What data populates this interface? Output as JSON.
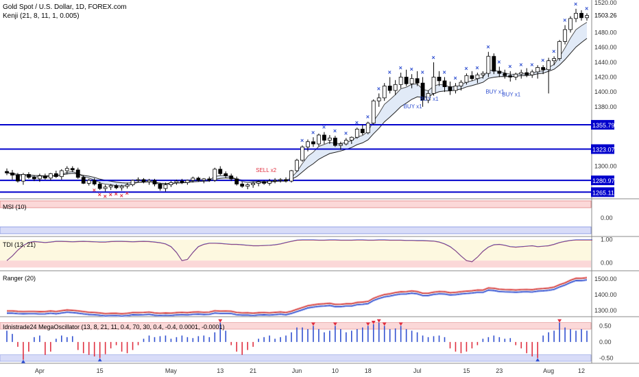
{
  "header": {
    "title": "Gold Spot / U.S. Dollar, 1D, FOREX.com",
    "indicator": "Kenji (21, 8, 11, 1, 0.005)"
  },
  "colors": {
    "up_candle_fill": "#ffffff",
    "down_candle_fill": "#000000",
    "level_line": "#0000cc",
    "buy_marker": "#3050d0",
    "sell_marker": "#e03040",
    "cloud_fill": "#c8d8f0",
    "band_red": "#f0a0a0",
    "band_blue": "#a0b0f0",
    "tdi_red": "#e04040",
    "tdi_blue": "#3050d0"
  },
  "chart_data": [
    {
      "type": "candlestick",
      "panel": "price",
      "ylim": [
        1258,
        1522
      ],
      "y_ticks": [
        "1520.00",
        "1480.00",
        "1460.00",
        "1440.00",
        "1420.00",
        "1400.00",
        "1380.00",
        "1300.00"
      ],
      "current_price": "1503.26",
      "horizontal_levels": [
        "1355.79",
        "1323.07",
        "1280.97",
        "1265.11"
      ],
      "x_tick_labels": [
        "Apr",
        "15",
        "May",
        "13",
        "21",
        "Jun",
        "10",
        "18",
        "Jul",
        "15",
        "23",
        "Aug",
        "12"
      ],
      "x_tick_index": [
        6,
        17,
        30,
        39,
        45,
        53,
        60,
        66,
        75,
        84,
        90,
        99,
        105
      ],
      "candles": [
        [
          1293,
          1297,
          1288,
          1291
        ],
        [
          1291,
          1295,
          1282,
          1288
        ],
        [
          1288,
          1291,
          1278,
          1280
        ],
        [
          1280,
          1291,
          1275,
          1289
        ],
        [
          1289,
          1292,
          1283,
          1285
        ],
        [
          1285,
          1288,
          1280,
          1283
        ],
        [
          1283,
          1290,
          1279,
          1287
        ],
        [
          1287,
          1290,
          1282,
          1284
        ],
        [
          1284,
          1291,
          1281,
          1290
        ],
        [
          1290,
          1294,
          1284,
          1286
        ],
        [
          1286,
          1296,
          1282,
          1294
        ],
        [
          1294,
          1300,
          1289,
          1297
        ],
        [
          1297,
          1300,
          1292,
          1295
        ],
        [
          1295,
          1298,
          1283,
          1285
        ],
        [
          1285,
          1288,
          1276,
          1277
        ],
        [
          1277,
          1283,
          1274,
          1281
        ],
        [
          1281,
          1284,
          1274,
          1276
        ],
        [
          1276,
          1279,
          1268,
          1270
        ],
        [
          1270,
          1275,
          1266,
          1272
        ],
        [
          1272,
          1276,
          1268,
          1274
        ],
        [
          1274,
          1276,
          1269,
          1271
        ],
        [
          1271,
          1275,
          1267,
          1273
        ],
        [
          1273,
          1278,
          1270,
          1275
        ],
        [
          1275,
          1282,
          1273,
          1281
        ],
        [
          1281,
          1285,
          1278,
          1282
        ],
        [
          1282,
          1284,
          1277,
          1279
        ],
        [
          1279,
          1283,
          1275,
          1281
        ],
        [
          1281,
          1283,
          1273,
          1276
        ],
        [
          1276,
          1278,
          1267,
          1270
        ],
        [
          1270,
          1278,
          1266,
          1275
        ],
        [
          1275,
          1280,
          1272,
          1278
        ],
        [
          1278,
          1282,
          1275,
          1280
        ],
        [
          1280,
          1283,
          1276,
          1278
        ],
        [
          1278,
          1282,
          1275,
          1281
        ],
        [
          1281,
          1286,
          1278,
          1284
        ],
        [
          1284,
          1286,
          1279,
          1281
        ],
        [
          1281,
          1284,
          1277,
          1283
        ],
        [
          1283,
          1286,
          1279,
          1281
        ],
        [
          1281,
          1298,
          1279,
          1296
        ],
        [
          1296,
          1300,
          1288,
          1290
        ],
        [
          1290,
          1293,
          1284,
          1287
        ],
        [
          1287,
          1290,
          1280,
          1283
        ],
        [
          1283,
          1286,
          1274,
          1276
        ],
        [
          1276,
          1279,
          1271,
          1273
        ],
        [
          1273,
          1277,
          1269,
          1275
        ],
        [
          1275,
          1279,
          1271,
          1277
        ],
        [
          1277,
          1281,
          1273,
          1279
        ],
        [
          1279,
          1281,
          1275,
          1277
        ],
        [
          1277,
          1283,
          1274,
          1280
        ],
        [
          1280,
          1284,
          1277,
          1281
        ],
        [
          1281,
          1284,
          1278,
          1282
        ],
        [
          1282,
          1285,
          1278,
          1280
        ],
        [
          1280,
          1295,
          1278,
          1294
        ],
        [
          1294,
          1310,
          1292,
          1308
        ],
        [
          1308,
          1328,
          1306,
          1326
        ],
        [
          1326,
          1336,
          1320,
          1333
        ],
        [
          1333,
          1339,
          1326,
          1330
        ],
        [
          1330,
          1344,
          1327,
          1342
        ],
        [
          1342,
          1346,
          1330,
          1335
        ],
        [
          1335,
          1342,
          1330,
          1338
        ],
        [
          1338,
          1341,
          1326,
          1328
        ],
        [
          1328,
          1333,
          1322,
          1330
        ],
        [
          1330,
          1338,
          1328,
          1335
        ],
        [
          1335,
          1340,
          1330,
          1339
        ],
        [
          1339,
          1352,
          1337,
          1350
        ],
        [
          1350,
          1356,
          1342,
          1345
        ],
        [
          1345,
          1360,
          1343,
          1358
        ],
        [
          1358,
          1390,
          1356,
          1388
        ],
        [
          1388,
          1398,
          1380,
          1392
        ],
        [
          1392,
          1412,
          1388,
          1408
        ],
        [
          1408,
          1420,
          1398,
          1402
        ],
        [
          1402,
          1416,
          1396,
          1410
        ],
        [
          1410,
          1426,
          1405,
          1420
        ],
        [
          1420,
          1430,
          1408,
          1411
        ],
        [
          1411,
          1424,
          1405,
          1418
        ],
        [
          1418,
          1428,
          1408,
          1412
        ],
        [
          1412,
          1420,
          1380,
          1389
        ],
        [
          1389,
          1402,
          1385,
          1398
        ],
        [
          1398,
          1440,
          1395,
          1420
        ],
        [
          1420,
          1428,
          1408,
          1415
        ],
        [
          1415,
          1420,
          1400,
          1407
        ],
        [
          1407,
          1414,
          1396,
          1402
        ],
        [
          1402,
          1412,
          1398,
          1408
        ],
        [
          1408,
          1416,
          1402,
          1413
        ],
        [
          1413,
          1425,
          1410,
          1422
        ],
        [
          1422,
          1428,
          1415,
          1418
        ],
        [
          1418,
          1426,
          1412,
          1423
        ],
        [
          1423,
          1428,
          1418,
          1425
        ],
        [
          1425,
          1454,
          1420,
          1448
        ],
        [
          1448,
          1452,
          1424,
          1428
        ],
        [
          1428,
          1434,
          1420,
          1425
        ],
        [
          1425,
          1430,
          1418,
          1422
        ],
        [
          1422,
          1428,
          1414,
          1420
        ],
        [
          1420,
          1426,
          1416,
          1424
        ],
        [
          1424,
          1430,
          1418,
          1426
        ],
        [
          1426,
          1432,
          1420,
          1423
        ],
        [
          1423,
          1430,
          1419,
          1427
        ],
        [
          1427,
          1436,
          1418,
          1433
        ],
        [
          1433,
          1436,
          1424,
          1430
        ],
        [
          1430,
          1446,
          1398,
          1442
        ],
        [
          1442,
          1448,
          1436,
          1445
        ],
        [
          1445,
          1470,
          1442,
          1468
        ],
        [
          1468,
          1490,
          1464,
          1484
        ],
        [
          1484,
          1502,
          1480,
          1499
        ],
        [
          1499,
          1512,
          1494,
          1506
        ],
        [
          1506,
          1510,
          1496,
          1500
        ],
        [
          1500,
          1506,
          1496,
          1503
        ]
      ],
      "annotations": [
        "SELL x2",
        "BUY x1",
        "BUY x1",
        "BUY x1",
        "BUY x1"
      ]
    },
    {
      "type": "oscillator",
      "panel": "MSI",
      "title": "MSI (10)",
      "y_ticks": [
        "0.00"
      ]
    },
    {
      "type": "line",
      "panel": "TDI",
      "title": "TDI (13, 21)",
      "y_ticks": [
        "1.00",
        "0.00"
      ],
      "ylim": [
        -0.25,
        1.05
      ],
      "values": [
        0.1,
        0.3,
        0.55,
        0.75,
        0.88,
        0.92,
        0.9,
        0.88,
        0.9,
        0.93,
        0.93,
        0.92,
        0.91,
        0.92,
        0.93,
        0.92,
        0.91,
        0.9,
        0.9,
        0.92,
        0.93,
        0.93,
        0.92,
        0.91,
        0.92,
        0.93,
        0.92,
        0.9,
        0.87,
        0.82,
        0.7,
        0.45,
        0.1,
        0.15,
        0.45,
        0.7,
        0.8,
        0.85,
        0.85,
        0.84,
        0.82,
        0.8,
        0.8,
        0.78,
        0.76,
        0.74,
        0.74,
        0.75,
        0.76,
        0.78,
        0.82,
        0.88,
        0.93,
        0.98,
        0.99,
        0.99,
        0.99,
        0.98,
        0.98,
        0.99,
        0.99,
        0.98,
        0.98,
        0.98,
        0.99,
        0.99,
        0.98,
        0.98,
        0.99,
        0.99,
        0.98,
        0.98,
        0.98,
        0.97,
        0.97,
        0.96,
        0.96,
        0.95,
        0.94,
        0.9,
        0.82,
        0.7,
        0.52,
        0.3,
        0.1,
        0.05,
        0.25,
        0.5,
        0.68,
        0.78,
        0.8,
        0.76,
        0.7,
        0.68,
        0.7,
        0.72,
        0.74,
        0.7,
        0.72,
        0.74,
        0.8,
        0.88,
        0.93,
        0.97,
        0.99,
        0.99,
        0.99,
        0.99
      ]
    },
    {
      "type": "line",
      "panel": "Ranger",
      "title": "Ranger (20)",
      "y_ticks": [
        "1500.00",
        "1400.00",
        "1300.00"
      ],
      "ylim": [
        1270,
        1540
      ]
    },
    {
      "type": "bar",
      "panel": "MegaOscillator",
      "title": "Idnistrade24 MegaOscillator (13, 8, 21, 11, 0.4, 70, 30, 0.4, -0.4, 0.0001, -0.0001)",
      "y_ticks": [
        "0.50",
        "0.00",
        "-0.50"
      ],
      "ylim": [
        -0.62,
        0.7
      ],
      "values": [
        0.35,
        0.25,
        -0.15,
        -0.55,
        -0.3,
        0.15,
        0.2,
        -0.4,
        -0.3,
        0.1,
        0.2,
        0.15,
        0.18,
        -0.25,
        -0.35,
        -0.4,
        -0.45,
        -0.5,
        -0.38,
        -0.2,
        -0.1,
        -0.3,
        -0.35,
        -0.25,
        -0.1,
        0.1,
        0.2,
        0.15,
        0.18,
        0.2,
        0.1,
        0.15,
        0.2,
        0.15,
        0.12,
        0.18,
        0.2,
        0.15,
        0.3,
        0.6,
        0.35,
        -0.1,
        -0.3,
        -0.4,
        -0.25,
        -0.15,
        0.1,
        0.15,
        0.2,
        0.1,
        0.15,
        0.2,
        0.3,
        0.45,
        0.45,
        0.4,
        0.5,
        0.4,
        0.3,
        0.35,
        0.5,
        0.4,
        0.3,
        0.35,
        0.4,
        0.45,
        0.5,
        0.55,
        0.6,
        0.5,
        0.4,
        0.42,
        0.5,
        0.4,
        0.35,
        0.3,
        0.2,
        0.15,
        0.18,
        0.2,
        0.15,
        -0.2,
        -0.3,
        -0.35,
        -0.3,
        -0.2,
        -0.1,
        0.1,
        0.15,
        0.2,
        0.15,
        0.1,
        0.12,
        -0.1,
        -0.2,
        -0.35,
        -0.45,
        -0.5,
        0.2,
        0.3,
        0.35,
        0.6,
        0.45,
        0.4,
        0.35,
        0.4,
        0.35
      ]
    }
  ]
}
